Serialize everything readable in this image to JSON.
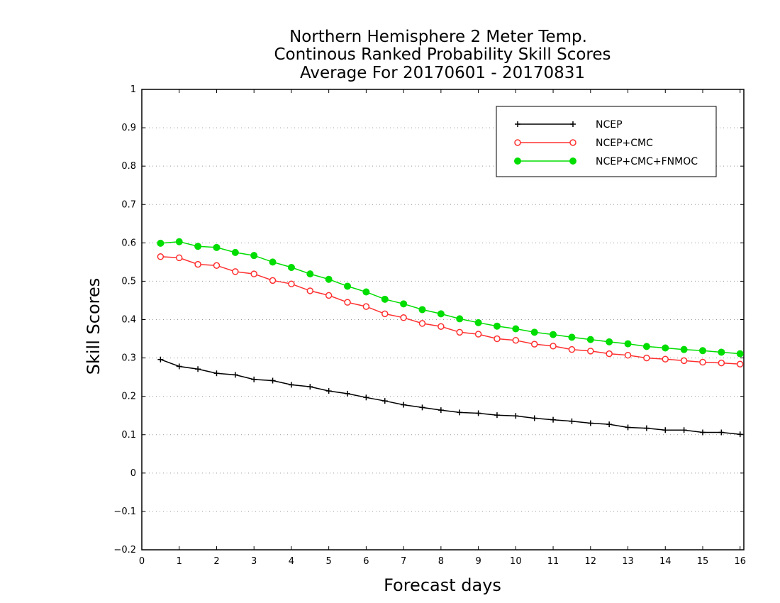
{
  "chart_data": {
    "type": "line",
    "title": [
      "Northern Hemisphere 2 Meter Temp.",
      "Continous Ranked Probability Skill Scores",
      "Average For 20170601 - 20170831"
    ],
    "xlabel": "Forecast days",
    "ylabel": "Skill Scores",
    "xlim": [
      0,
      16.1
    ],
    "ylim": [
      -0.2,
      1
    ],
    "x_ticks": [
      "0",
      "1",
      "2",
      "3",
      "4",
      "5",
      "6",
      "7",
      "8",
      "9",
      "10",
      "11",
      "12",
      "13",
      "14",
      "15",
      "16"
    ],
    "y_ticks": [
      "-0.2",
      "-0.1",
      "0",
      "0.1",
      "0.2",
      "0.3",
      "0.4",
      "0.5",
      "0.6",
      "0.7",
      "0.8",
      "0.9",
      "1"
    ],
    "grid": "horizontal-dotted",
    "legend_position": "top-right",
    "x": [
      0.5,
      1,
      1.5,
      2,
      2.5,
      3,
      3.5,
      4,
      4.5,
      5,
      5.5,
      6,
      6.5,
      7,
      7.5,
      8,
      8.5,
      9,
      9.5,
      10,
      10.5,
      11,
      11.5,
      12,
      12.5,
      13,
      13.5,
      14,
      14.5,
      15,
      15.5,
      16
    ],
    "series": [
      {
        "name": "NCEP",
        "color": "#000000",
        "marker": "plus",
        "values": [
          0.296,
          0.278,
          0.271,
          0.26,
          0.256,
          0.244,
          0.241,
          0.23,
          0.225,
          0.214,
          0.207,
          0.197,
          0.188,
          0.178,
          0.171,
          0.164,
          0.158,
          0.156,
          0.151,
          0.149,
          0.143,
          0.139,
          0.135,
          0.13,
          0.127,
          0.119,
          0.117,
          0.112,
          0.112,
          0.106,
          0.106,
          0.101
        ]
      },
      {
        "name": "NCEP+CMC",
        "color": "#ff3030",
        "marker": "open-circle",
        "values": [
          0.564,
          0.561,
          0.544,
          0.541,
          0.525,
          0.519,
          0.502,
          0.493,
          0.475,
          0.463,
          0.445,
          0.434,
          0.415,
          0.405,
          0.39,
          0.382,
          0.367,
          0.362,
          0.35,
          0.346,
          0.336,
          0.331,
          0.322,
          0.318,
          0.311,
          0.307,
          0.3,
          0.297,
          0.293,
          0.289,
          0.287,
          0.284
        ]
      },
      {
        "name": "NCEP+CMC+FNMOC",
        "color": "#00dd00",
        "marker": "filled-circle",
        "values": [
          0.599,
          0.603,
          0.591,
          0.588,
          0.575,
          0.567,
          0.55,
          0.536,
          0.519,
          0.505,
          0.487,
          0.472,
          0.453,
          0.441,
          0.426,
          0.415,
          0.402,
          0.392,
          0.383,
          0.376,
          0.367,
          0.361,
          0.354,
          0.348,
          0.342,
          0.337,
          0.33,
          0.326,
          0.322,
          0.319,
          0.315,
          0.311
        ]
      }
    ]
  }
}
